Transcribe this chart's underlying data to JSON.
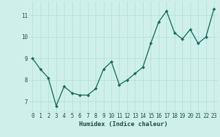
{
  "x": [
    0,
    1,
    2,
    3,
    4,
    5,
    6,
    7,
    8,
    9,
    10,
    11,
    12,
    13,
    14,
    15,
    16,
    17,
    18,
    19,
    20,
    21,
    22,
    23
  ],
  "y": [
    9.0,
    8.5,
    8.1,
    6.8,
    7.7,
    7.4,
    7.3,
    7.3,
    7.6,
    8.5,
    8.85,
    7.78,
    8.0,
    8.3,
    8.6,
    9.7,
    10.7,
    11.2,
    10.2,
    9.9,
    10.35,
    9.7,
    10.0,
    11.3
  ],
  "line_color": "#1a6b5e",
  "marker": "D",
  "marker_size": 2.0,
  "xlabel": "Humidex (Indice chaleur)",
  "xlim": [
    -0.5,
    23.5
  ],
  "ylim": [
    6.5,
    11.65
  ],
  "yticks": [
    7,
    8,
    9,
    10,
    11
  ],
  "xticks": [
    0,
    1,
    2,
    3,
    4,
    5,
    6,
    7,
    8,
    9,
    10,
    11,
    12,
    13,
    14,
    15,
    16,
    17,
    18,
    19,
    20,
    21,
    22,
    23
  ],
  "bg_color": "#cff0ea",
  "grid_color": "#aeddd6",
  "tick_fontsize": 5.5,
  "xlabel_fontsize": 6.5,
  "line_width": 1.0
}
